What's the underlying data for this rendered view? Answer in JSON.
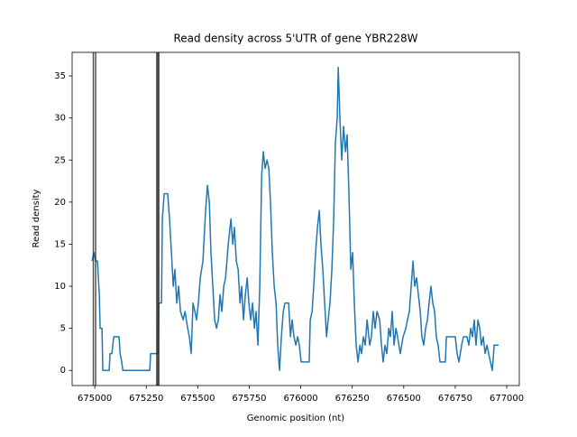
{
  "chart_data": {
    "type": "line",
    "title": "Read density across 5'UTR of gene YBR228W",
    "x_label": "Genomic position (nt)",
    "y_label": "Read density",
    "x": [
      674987,
      674996,
      675004,
      675013,
      675022,
      675026,
      675035,
      675039,
      675070,
      675074,
      675083,
      675092,
      675118,
      675123,
      675131,
      675136,
      675267,
      675271,
      675306,
      675311,
      675324,
      675328,
      675337,
      675354,
      675363,
      675372,
      675381,
      675389,
      675398,
      675407,
      675416,
      675429,
      675438,
      675451,
      675459,
      675468,
      675477,
      675486,
      675494,
      675503,
      675512,
      675525,
      675538,
      675547,
      675556,
      675564,
      675573,
      675582,
      675591,
      675600,
      675608,
      675617,
      675626,
      675635,
      675648,
      675661,
      675670,
      675678,
      675687,
      675696,
      675705,
      675713,
      675722,
      675731,
      675740,
      675748,
      675757,
      675766,
      675775,
      675783,
      675792,
      675801,
      675810,
      675818,
      675827,
      675836,
      675845,
      675853,
      675862,
      675871,
      675880,
      675888,
      675897,
      675906,
      675915,
      675923,
      675941,
      675950,
      675958,
      675967,
      675976,
      675985,
      675993,
      676002,
      676041,
      676046,
      676055,
      676063,
      676072,
      676081,
      676090,
      676098,
      676107,
      676116,
      676125,
      676133,
      676142,
      676151,
      676160,
      676168,
      676177,
      676182,
      676190,
      676199,
      676208,
      676217,
      676225,
      676234,
      676243,
      676252,
      676260,
      676269,
      676278,
      676287,
      676295,
      676304,
      676313,
      676322,
      676335,
      676343,
      676352,
      676361,
      676370,
      676383,
      676392,
      676400,
      676409,
      676418,
      676427,
      676435,
      676444,
      676453,
      676462,
      676470,
      676483,
      676497,
      676510,
      676518,
      676527,
      676536,
      676545,
      676553,
      676562,
      676571,
      676580,
      676588,
      676597,
      676606,
      676615,
      676623,
      676632,
      676641,
      676650,
      676658,
      676667,
      676676,
      676702,
      676707,
      676750,
      676759,
      676768,
      676781,
      676790,
      676807,
      676816,
      676825,
      676834,
      676842,
      676851,
      676860,
      676869,
      676877,
      676886,
      676895,
      676904,
      676912,
      676921,
      676930,
      676939,
      676960
    ],
    "series": [
      {
        "color": "#1f77b4",
        "values": [
          13,
          14,
          13,
          13,
          9,
          5,
          5,
          0,
          0,
          2,
          2,
          4,
          4,
          2,
          1,
          0,
          0,
          2,
          2,
          8,
          8,
          18,
          21,
          21,
          18,
          14,
          10,
          12,
          8,
          10,
          7,
          6,
          7,
          5,
          4,
          2,
          8,
          7,
          6,
          8,
          11,
          13,
          19,
          22,
          20,
          14,
          10,
          6,
          5,
          6,
          9,
          7,
          10,
          11,
          15,
          18,
          15,
          17,
          13,
          12,
          8,
          10,
          6,
          9,
          11,
          8,
          6,
          8,
          5,
          7,
          3,
          10,
          23,
          26,
          24,
          25,
          24,
          20,
          14,
          10,
          8,
          3,
          0,
          4,
          7,
          8,
          8,
          4,
          6,
          4,
          3,
          4,
          3,
          1,
          1,
          6,
          7,
          10,
          14,
          17,
          19,
          15,
          12,
          8,
          4,
          6,
          8,
          12,
          18,
          27,
          30,
          36,
          30,
          25,
          29,
          26,
          28,
          21,
          12,
          14,
          8,
          3,
          1,
          3,
          2,
          4,
          3,
          6,
          3,
          4,
          7,
          5,
          7,
          6,
          3,
          1,
          3,
          2,
          5,
          4,
          7,
          3,
          5,
          4,
          2,
          4,
          5,
          6,
          7,
          10,
          13,
          10,
          11,
          9,
          7,
          4,
          3,
          5,
          6,
          8,
          10,
          8,
          7,
          4,
          3,
          1,
          1,
          4,
          4,
          2,
          1,
          3,
          4,
          4,
          3,
          5,
          4,
          6,
          3,
          6,
          5,
          3,
          4,
          2,
          3,
          2,
          1,
          0,
          3,
          3
        ]
      }
    ],
    "vlines": [
      674993,
      675004,
      675301,
      675306,
      675311
    ],
    "vline_color": "#333333",
    "xlim": [
      674890,
      677061
    ],
    "ylim": [
      -1.8,
      37.8
    ],
    "xticks": [
      675000,
      675250,
      675500,
      675750,
      676000,
      676250,
      676500,
      676750,
      677000
    ],
    "yticks": [
      0,
      5,
      10,
      15,
      20,
      25,
      30,
      35
    ],
    "grid": false
  }
}
